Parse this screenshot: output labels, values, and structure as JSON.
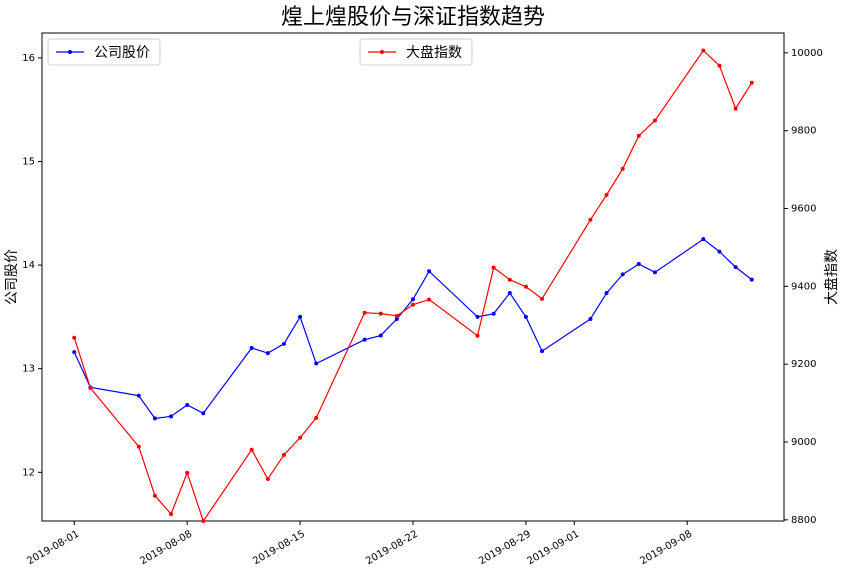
{
  "chart_data": {
    "type": "line",
    "title": "煌上煌股价与深证指数趋势",
    "ylabel": "公司股价",
    "y2label": "大盘指数",
    "x": [
      "2019-08-01",
      "2019-08-02",
      "2019-08-05",
      "2019-08-06",
      "2019-08-07",
      "2019-08-08",
      "2019-08-09",
      "2019-08-12",
      "2019-08-13",
      "2019-08-14",
      "2019-08-15",
      "2019-08-16",
      "2019-08-19",
      "2019-08-20",
      "2019-08-21",
      "2019-08-22",
      "2019-08-23",
      "2019-08-26",
      "2019-08-27",
      "2019-08-28",
      "2019-08-29",
      "2019-08-30",
      "2019-09-02",
      "2019-09-03",
      "2019-09-04",
      "2019-09-05",
      "2019-09-06",
      "2019-09-09",
      "2019-09-10",
      "2019-09-11",
      "2019-09-12"
    ],
    "xlim": [
      "2019-07-30",
      "2019-09-14"
    ],
    "xticks": [
      "2019-08-01",
      "2019-08-08",
      "2019-08-15",
      "2019-08-22",
      "2019-08-29",
      "2019-09-01",
      "2019-09-08"
    ],
    "ylim": [
      11.53,
      16.24
    ],
    "yticks": [
      12,
      13,
      14,
      15,
      16
    ],
    "y2lim": [
      8797,
      10051
    ],
    "y2ticks": [
      8800,
      9000,
      9200,
      9400,
      9600,
      9800,
      10000
    ],
    "series": [
      {
        "name": "公司股价",
        "color": "#0000ff",
        "axis": "y",
        "legend": "upper left",
        "values": [
          13.16,
          12.82,
          12.74,
          12.52,
          12.54,
          12.65,
          12.57,
          13.2,
          13.15,
          13.24,
          13.5,
          13.05,
          13.28,
          13.32,
          13.48,
          13.67,
          13.94,
          13.5,
          13.53,
          13.73,
          13.5,
          13.17,
          13.48,
          13.73,
          13.91,
          14.01,
          13.93,
          14.25,
          14.13,
          13.98,
          13.86
        ]
      },
      {
        "name": "大盘指数",
        "color": "#ff0000",
        "axis": "y2",
        "legend": "upper center",
        "values": [
          9268,
          9139,
          8988,
          8862,
          8815,
          8921,
          8797,
          8980,
          8905,
          8967,
          9011,
          9062,
          9332,
          9330,
          9324,
          9353,
          9366,
          9273,
          9448,
          9417,
          9399,
          9368,
          9571,
          9635,
          9702,
          9787,
          9826,
          10006,
          9967,
          9857,
          9923
        ]
      }
    ]
  }
}
